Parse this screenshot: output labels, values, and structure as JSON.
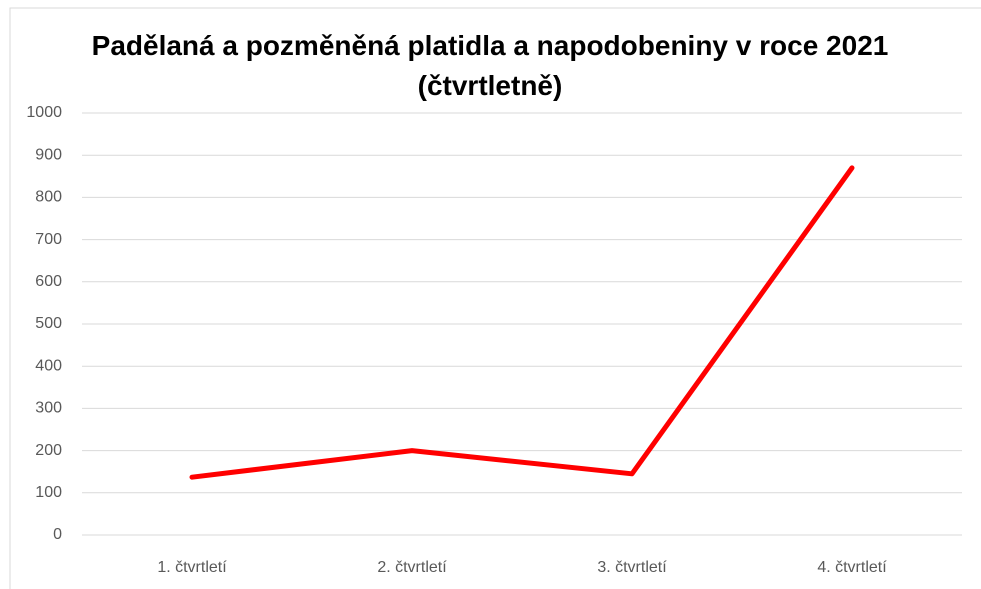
{
  "chart_data": {
    "type": "line",
    "title": "Padělaná a pozměněná platidla a napodobeniny v roce 2021 (čtvrtletně)",
    "categories": [
      "1. čtvrtletí",
      "2. čtvrtletí",
      "3. čtvrtletí",
      "4. čtvrtletí"
    ],
    "series": [
      {
        "color": "#ff0000",
        "values": [
          137,
          200,
          145,
          870
        ]
      }
    ],
    "ylim": [
      0,
      1000
    ],
    "yticks": [
      0,
      100,
      200,
      300,
      400,
      500,
      600,
      700,
      800,
      900,
      1000
    ],
    "grid": true
  }
}
